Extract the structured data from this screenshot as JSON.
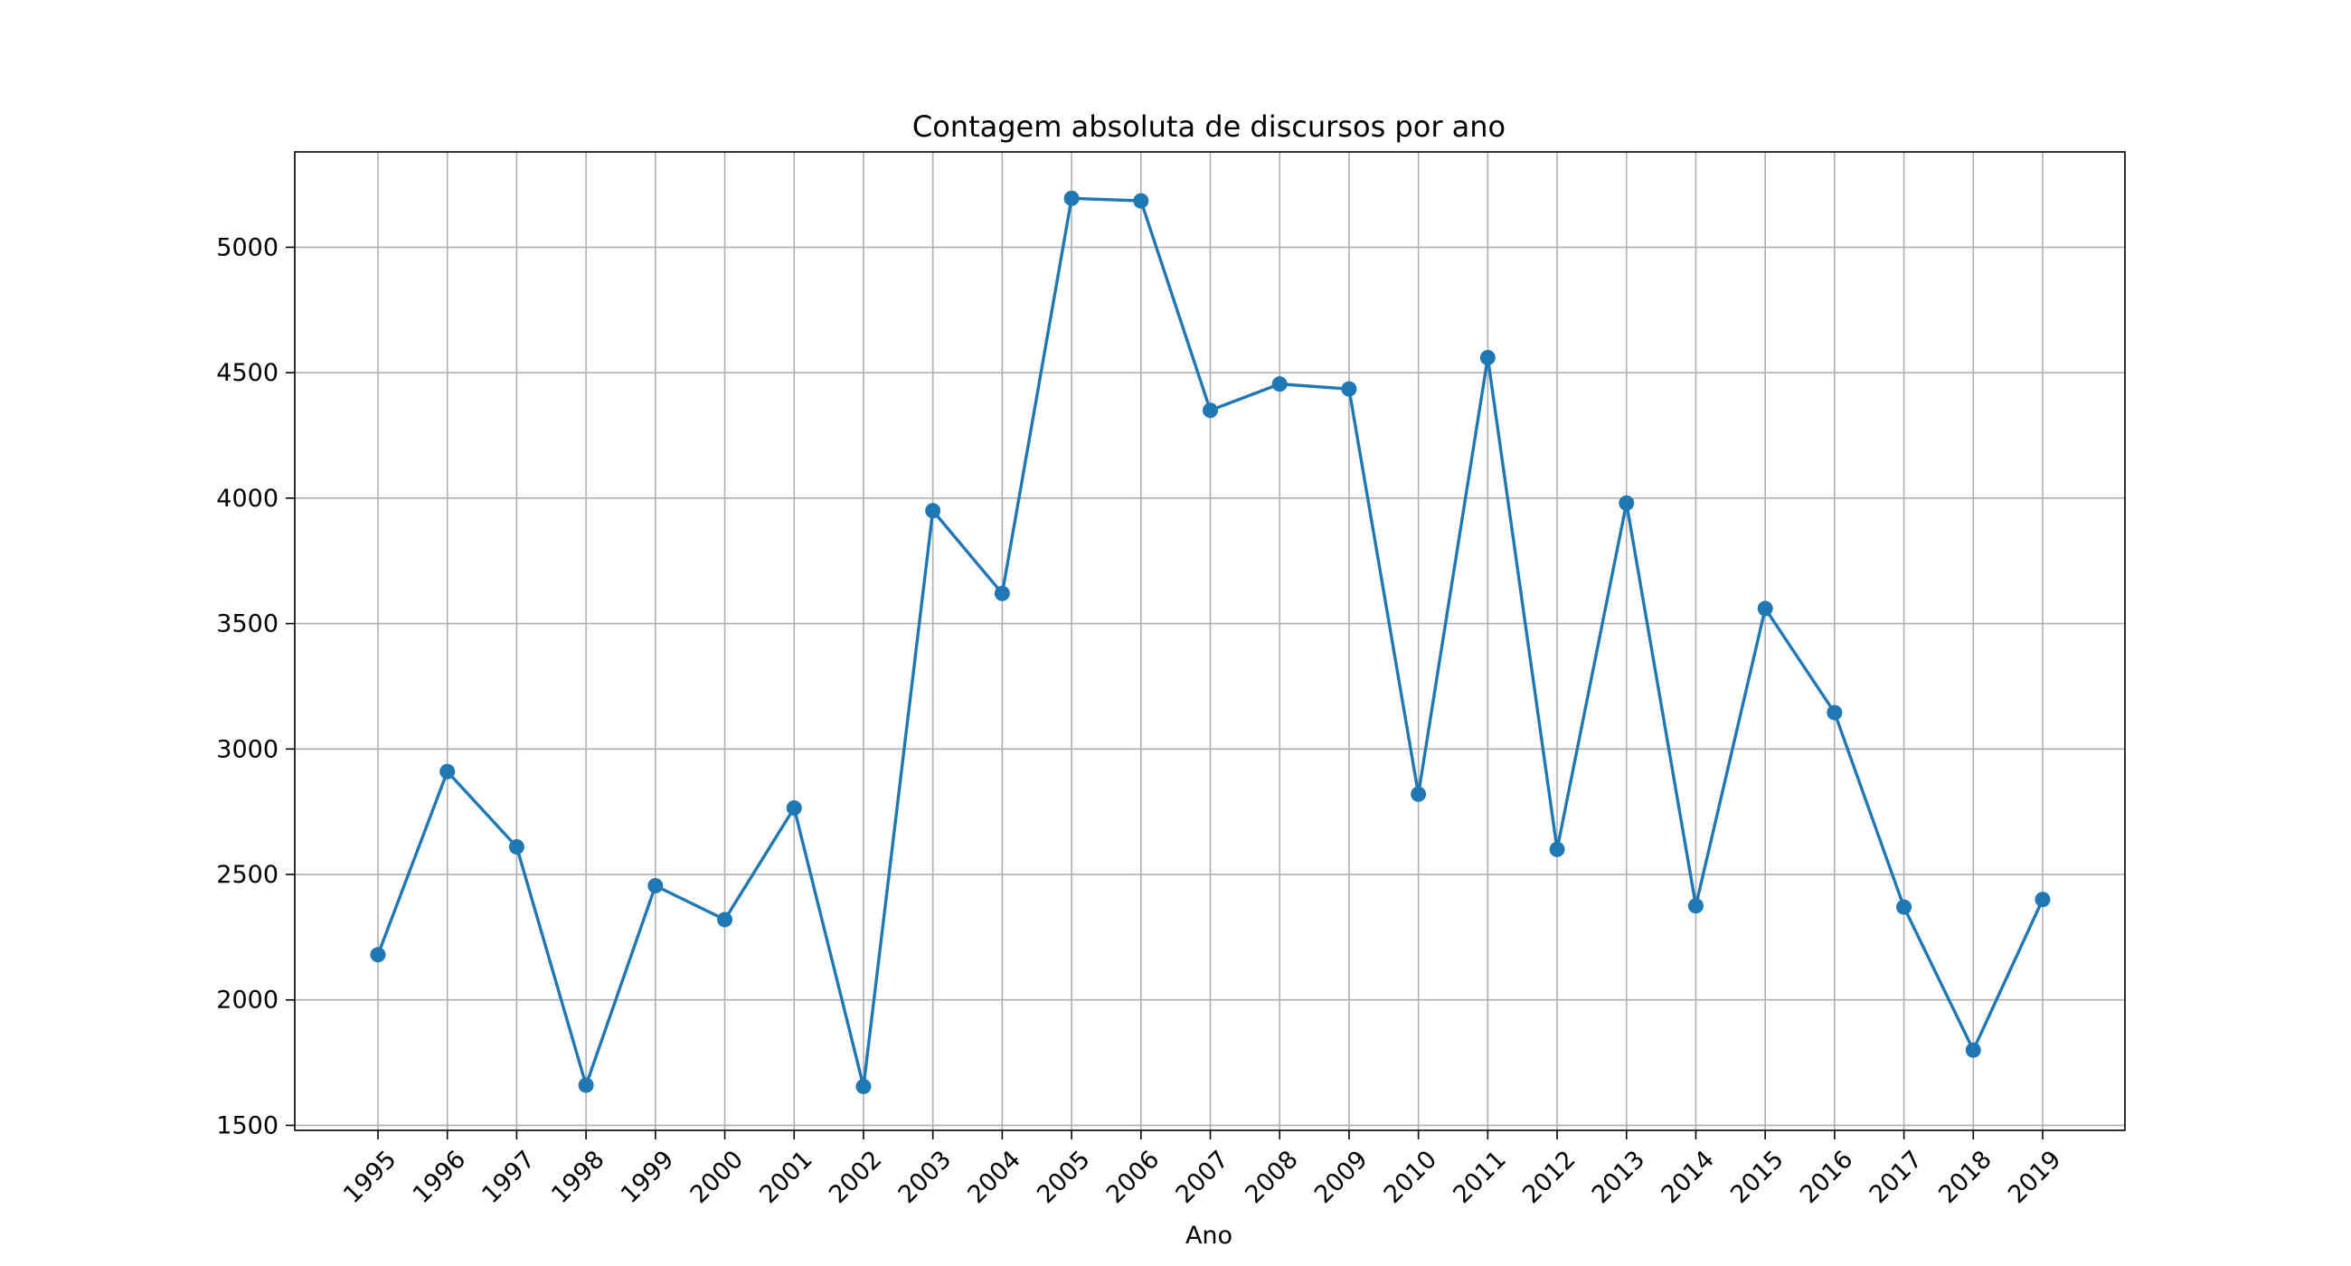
{
  "chart_data": {
    "type": "line",
    "title": "Contagem absoluta de discursos por ano",
    "xlabel": "Ano",
    "ylabel": "",
    "categories": [
      "1995",
      "1996",
      "1997",
      "1998",
      "1999",
      "2000",
      "2001",
      "2002",
      "2003",
      "2004",
      "2005",
      "2006",
      "2007",
      "2008",
      "2009",
      "2010",
      "2011",
      "2012",
      "2013",
      "2014",
      "2015",
      "2016",
      "2017",
      "2018",
      "2019"
    ],
    "series": [
      {
        "values": [
          2180,
          2910,
          2610,
          1660,
          2455,
          2320,
          2765,
          1655,
          3950,
          3620,
          5195,
          5185,
          4350,
          4455,
          4435,
          2820,
          4560,
          2600,
          3980,
          2375,
          3560,
          3145,
          2370,
          1800,
          2400
        ],
        "color": "#1f77b4",
        "marker": "circle"
      }
    ],
    "ylim": [
      1480,
      5380
    ],
    "yticks": [
      1500,
      2000,
      2500,
      3000,
      3500,
      4000,
      4500,
      5000
    ],
    "grid": true,
    "x_tick_rotation": 45
  }
}
